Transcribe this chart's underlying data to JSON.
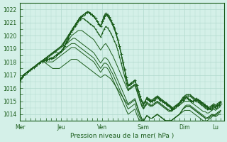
{
  "title": "",
  "xlabel": "Pression niveau de la mer( hPa )",
  "ylabel": "",
  "bg_color": "#d4f0e8",
  "grid_color": "#b0d8cc",
  "line_color": "#1a5c1a",
  "marker_color": "#1a5c1a",
  "ylim": [
    1013.5,
    1022.5
  ],
  "yticks": [
    1014,
    1015,
    1016,
    1017,
    1018,
    1019,
    1020,
    1021,
    1022
  ],
  "day_labels": [
    "Mer",
    "Jeu",
    "Ven",
    "Sam",
    "Dim",
    "Lu"
  ],
  "day_positions": [
    0,
    24,
    48,
    72,
    96,
    114
  ],
  "num_hours": 120,
  "series": [
    [
      1016.5,
      1016.8,
      1017.0,
      1017.1,
      1017.2,
      1017.3,
      1017.4,
      1017.5,
      1017.6,
      1017.7,
      1017.8,
      1017.9,
      1018.0,
      1018.0,
      1018.1,
      1018.1,
      1018.2,
      1018.2,
      1018.3,
      1018.3,
      1018.4,
      1018.5,
      1018.6,
      1018.7,
      1018.8,
      1019.0,
      1019.2,
      1019.5,
      1019.8,
      1020.1,
      1020.4,
      1020.6,
      1020.8,
      1021.0,
      1021.2,
      1021.4,
      1021.5,
      1021.6,
      1021.7,
      1021.8,
      1021.8,
      1021.7,
      1021.6,
      1021.5,
      1021.3,
      1021.1,
      1020.9,
      1020.7,
      1021.1,
      1021.5,
      1021.7,
      1021.6,
      1021.4,
      1021.2,
      1020.9,
      1020.6,
      1020.2,
      1019.7,
      1019.2,
      1018.6,
      1018.0,
      1017.4,
      1016.8,
      1016.2,
      1016.3,
      1016.4,
      1016.5,
      1016.6,
      1016.2,
      1015.8,
      1015.4,
      1015.0,
      1014.8,
      1015.0,
      1015.2,
      1015.1,
      1015.0,
      1015.0,
      1015.1,
      1015.2,
      1015.3,
      1015.2,
      1015.1,
      1015.0,
      1014.9,
      1014.8,
      1014.7,
      1014.6,
      1014.5,
      1014.4,
      1014.5,
      1014.6,
      1014.7,
      1014.8,
      1015.0,
      1015.1,
      1015.2,
      1015.3,
      1015.2,
      1015.1,
      1015.0,
      1015.0,
      1015.1,
      1015.2,
      1015.1,
      1015.0,
      1014.9,
      1014.8,
      1014.7,
      1014.6,
      1014.5,
      1014.4,
      1014.5,
      1014.6,
      1014.5,
      1014.6,
      1014.7,
      1014.8
    ],
    [
      1016.5,
      1016.8,
      1017.0,
      1017.1,
      1017.2,
      1017.3,
      1017.4,
      1017.5,
      1017.6,
      1017.7,
      1017.8,
      1017.9,
      1018.0,
      1018.0,
      1018.1,
      1018.1,
      1018.2,
      1018.2,
      1018.3,
      1018.3,
      1018.4,
      1018.5,
      1018.6,
      1018.7,
      1018.8,
      1019.0,
      1019.2,
      1019.4,
      1019.6,
      1019.8,
      1020.0,
      1020.1,
      1020.2,
      1020.3,
      1020.4,
      1020.4,
      1020.4,
      1020.3,
      1020.2,
      1020.1,
      1020.0,
      1019.9,
      1019.8,
      1019.7,
      1019.5,
      1019.3,
      1019.1,
      1018.9,
      1019.1,
      1019.3,
      1019.4,
      1019.2,
      1019.0,
      1018.7,
      1018.5,
      1018.2,
      1017.9,
      1017.6,
      1017.3,
      1017.0,
      1016.7,
      1016.4,
      1016.1,
      1015.8,
      1015.9,
      1016.0,
      1016.1,
      1016.2,
      1015.8,
      1015.4,
      1015.0,
      1014.6,
      1014.4,
      1014.6,
      1014.8,
      1014.7,
      1014.6,
      1014.6,
      1014.7,
      1014.8,
      1014.9,
      1014.8,
      1014.7,
      1014.6,
      1014.5,
      1014.4,
      1014.3,
      1014.2,
      1014.2,
      1014.3,
      1014.4,
      1014.5,
      1014.6,
      1014.7,
      1014.8,
      1014.9,
      1015.0,
      1015.0,
      1015.0,
      1015.0,
      1014.9,
      1014.8,
      1014.7,
      1014.6,
      1014.5,
      1014.4,
      1014.3,
      1014.2,
      1014.2,
      1014.1,
      1014.1,
      1014.2,
      1014.3,
      1014.4,
      1014.3,
      1014.4,
      1014.5,
      1014.6
    ],
    [
      1016.5,
      1016.8,
      1017.0,
      1017.1,
      1017.2,
      1017.3,
      1017.4,
      1017.5,
      1017.6,
      1017.7,
      1017.8,
      1017.9,
      1018.0,
      1018.0,
      1018.0,
      1017.9,
      1017.8,
      1017.7,
      1017.6,
      1017.5,
      1017.5,
      1017.5,
      1017.5,
      1017.5,
      1017.6,
      1017.7,
      1017.8,
      1017.9,
      1018.0,
      1018.1,
      1018.2,
      1018.2,
      1018.2,
      1018.2,
      1018.1,
      1018.0,
      1017.9,
      1017.8,
      1017.7,
      1017.6,
      1017.5,
      1017.4,
      1017.3,
      1017.2,
      1017.1,
      1017.0,
      1016.9,
      1016.8,
      1016.9,
      1017.0,
      1017.0,
      1016.9,
      1016.8,
      1016.7,
      1016.5,
      1016.3,
      1016.1,
      1015.9,
      1015.7,
      1015.5,
      1015.3,
      1015.1,
      1014.9,
      1014.7,
      1014.8,
      1014.9,
      1015.0,
      1015.1,
      1014.7,
      1014.3,
      1013.9,
      1013.6,
      1013.5,
      1013.7,
      1013.9,
      1013.8,
      1013.7,
      1013.7,
      1013.8,
      1013.9,
      1014.0,
      1013.9,
      1013.8,
      1013.7,
      1013.6,
      1013.5,
      1013.5,
      1013.5,
      1013.5,
      1013.6,
      1013.7,
      1013.8,
      1013.9,
      1014.0,
      1014.1,
      1014.2,
      1014.3,
      1014.3,
      1014.3,
      1014.3,
      1014.2,
      1014.1,
      1014.0,
      1013.9,
      1013.8,
      1013.7,
      1013.6,
      1013.5,
      1013.5,
      1013.5,
      1013.6,
      1013.7,
      1013.8,
      1013.9,
      1013.8,
      1013.9,
      1014.0,
      1014.0
    ],
    [
      1016.5,
      1016.8,
      1017.0,
      1017.1,
      1017.2,
      1017.3,
      1017.4,
      1017.5,
      1017.6,
      1017.7,
      1017.8,
      1017.9,
      1018.0,
      1018.0,
      1018.1,
      1018.2,
      1018.3,
      1018.4,
      1018.5,
      1018.6,
      1018.7,
      1018.8,
      1018.9,
      1019.0,
      1019.1,
      1019.2,
      1019.3,
      1019.4,
      1019.5,
      1019.6,
      1019.7,
      1019.8,
      1019.8,
      1019.7,
      1019.6,
      1019.5,
      1019.4,
      1019.3,
      1019.2,
      1019.1,
      1019.0,
      1018.9,
      1018.8,
      1018.7,
      1018.5,
      1018.3,
      1018.1,
      1017.9,
      1018.1,
      1018.3,
      1018.3,
      1018.2,
      1018.0,
      1017.7,
      1017.5,
      1017.2,
      1016.9,
      1016.6,
      1016.3,
      1016.0,
      1015.7,
      1015.4,
      1015.1,
      1014.8,
      1014.9,
      1015.0,
      1015.1,
      1015.2,
      1014.8,
      1014.4,
      1014.0,
      1013.7,
      1013.5,
      1013.7,
      1013.9,
      1013.8,
      1013.7,
      1013.7,
      1013.8,
      1013.9,
      1014.0,
      1013.9,
      1013.8,
      1013.7,
      1013.6,
      1013.5,
      1013.5,
      1013.5,
      1013.5,
      1013.6,
      1013.7,
      1013.8,
      1013.9,
      1014.0,
      1014.2,
      1014.4,
      1014.6,
      1014.7,
      1014.7,
      1014.7,
      1014.6,
      1014.5,
      1014.4,
      1014.3,
      1014.2,
      1014.1,
      1014.0,
      1013.9,
      1013.8,
      1013.7,
      1013.7,
      1013.8,
      1013.9,
      1014.0,
      1013.9,
      1014.0,
      1014.1,
      1014.2
    ],
    [
      1016.5,
      1016.8,
      1017.0,
      1017.1,
      1017.2,
      1017.3,
      1017.4,
      1017.5,
      1017.6,
      1017.7,
      1017.8,
      1017.9,
      1018.0,
      1018.1,
      1018.2,
      1018.3,
      1018.4,
      1018.5,
      1018.6,
      1018.7,
      1018.7,
      1018.7,
      1018.7,
      1018.7,
      1018.8,
      1018.9,
      1019.0,
      1019.1,
      1019.2,
      1019.3,
      1019.4,
      1019.4,
      1019.4,
      1019.3,
      1019.2,
      1019.1,
      1019.0,
      1018.9,
      1018.8,
      1018.7,
      1018.6,
      1018.5,
      1018.4,
      1018.3,
      1018.1,
      1017.9,
      1017.7,
      1017.5,
      1017.7,
      1017.9,
      1017.9,
      1017.8,
      1017.6,
      1017.3,
      1017.1,
      1016.8,
      1016.5,
      1016.2,
      1015.9,
      1015.6,
      1015.3,
      1015.0,
      1014.7,
      1014.4,
      1014.5,
      1014.6,
      1014.7,
      1014.8,
      1014.4,
      1014.0,
      1013.7,
      1013.5,
      1013.5,
      1013.7,
      1013.9,
      1013.8,
      1013.7,
      1013.7,
      1013.8,
      1013.9,
      1014.0,
      1013.9,
      1013.8,
      1013.7,
      1013.6,
      1013.5,
      1013.5,
      1013.5,
      1013.5,
      1013.6,
      1013.7,
      1013.8,
      1013.9,
      1014.0,
      1014.2,
      1014.4,
      1014.5,
      1014.6,
      1014.6,
      1014.6,
      1014.5,
      1014.4,
      1014.3,
      1014.2,
      1014.1,
      1014.0,
      1013.9,
      1013.8,
      1013.7,
      1013.7,
      1013.8,
      1013.9,
      1014.0,
      1013.9,
      1014.0,
      1014.1,
      1014.2,
      1014.3
    ],
    [
      1016.5,
      1016.8,
      1017.0,
      1017.1,
      1017.2,
      1017.3,
      1017.4,
      1017.5,
      1017.6,
      1017.7,
      1017.8,
      1017.9,
      1018.0,
      1018.0,
      1018.0,
      1018.0,
      1018.0,
      1018.0,
      1018.0,
      1018.0,
      1018.1,
      1018.2,
      1018.3,
      1018.4,
      1018.5,
      1018.6,
      1018.7,
      1018.8,
      1018.9,
      1019.0,
      1019.1,
      1019.1,
      1019.1,
      1019.0,
      1018.9,
      1018.8,
      1018.7,
      1018.6,
      1018.5,
      1018.4,
      1018.3,
      1018.2,
      1018.1,
      1018.0,
      1017.8,
      1017.6,
      1017.4,
      1017.2,
      1017.4,
      1017.6,
      1017.6,
      1017.5,
      1017.3,
      1017.0,
      1016.7,
      1016.4,
      1016.1,
      1015.8,
      1015.5,
      1015.2,
      1014.9,
      1014.6,
      1014.3,
      1014.0,
      1014.1,
      1014.2,
      1014.3,
      1014.4,
      1014.0,
      1013.7,
      1013.5,
      1013.5,
      1013.5,
      1013.7,
      1013.9,
      1013.8,
      1013.7,
      1013.7,
      1013.8,
      1013.9,
      1014.0,
      1013.9,
      1013.8,
      1013.7,
      1013.6,
      1013.5,
      1013.5,
      1013.5,
      1013.5,
      1013.6,
      1013.7,
      1013.8,
      1013.9,
      1014.0,
      1014.2,
      1014.4,
      1014.5,
      1014.6,
      1014.6,
      1014.6,
      1014.5,
      1014.4,
      1014.3,
      1014.2,
      1014.1,
      1014.0,
      1013.9,
      1013.8,
      1013.7,
      1013.7,
      1013.8,
      1013.9,
      1014.0,
      1013.9,
      1014.0,
      1014.1,
      1014.2,
      1014.3
    ],
    [
      1016.5,
      1016.8,
      1017.0,
      1017.1,
      1017.2,
      1017.3,
      1017.4,
      1017.5,
      1017.6,
      1017.7,
      1017.8,
      1017.9,
      1018.0,
      1018.1,
      1018.2,
      1018.3,
      1018.4,
      1018.5,
      1018.6,
      1018.7,
      1018.8,
      1018.9,
      1019.0,
      1019.1,
      1019.2,
      1019.3,
      1019.5,
      1019.7,
      1019.9,
      1020.1,
      1020.3,
      1020.5,
      1020.7,
      1020.9,
      1021.1,
      1021.3,
      1021.5,
      1021.6,
      1021.7,
      1021.8,
      1021.8,
      1021.7,
      1021.6,
      1021.5,
      1021.3,
      1021.1,
      1020.9,
      1020.7,
      1021.0,
      1021.3,
      1021.6,
      1021.5,
      1021.3,
      1021.1,
      1020.8,
      1020.5,
      1020.1,
      1019.7,
      1019.2,
      1018.6,
      1018.0,
      1017.4,
      1016.8,
      1016.2,
      1016.3,
      1016.4,
      1016.5,
      1016.6,
      1016.2,
      1015.8,
      1015.4,
      1015.0,
      1014.7,
      1015.0,
      1015.3,
      1015.2,
      1015.1,
      1015.1,
      1015.2,
      1015.3,
      1015.4,
      1015.3,
      1015.2,
      1015.1,
      1015.0,
      1014.9,
      1014.8,
      1014.7,
      1014.6,
      1014.5,
      1014.6,
      1014.7,
      1014.8,
      1014.9,
      1015.1,
      1015.3,
      1015.4,
      1015.5,
      1015.5,
      1015.5,
      1015.4,
      1015.3,
      1015.2,
      1015.1,
      1015.0,
      1014.9,
      1014.8,
      1014.7,
      1014.6,
      1014.5,
      1014.5,
      1014.6,
      1014.7,
      1014.8,
      1014.7,
      1014.8,
      1014.9,
      1015.0
    ],
    [
      1016.5,
      1016.8,
      1017.0,
      1017.1,
      1017.2,
      1017.3,
      1017.4,
      1017.5,
      1017.6,
      1017.7,
      1017.8,
      1017.9,
      1018.0,
      1018.1,
      1018.2,
      1018.3,
      1018.4,
      1018.5,
      1018.6,
      1018.7,
      1018.8,
      1018.9,
      1019.0,
      1019.1,
      1019.2,
      1019.4,
      1019.6,
      1019.8,
      1020.0,
      1020.2,
      1020.4,
      1020.6,
      1020.8,
      1021.0,
      1021.1,
      1021.2,
      1021.3,
      1021.3,
      1021.2,
      1021.1,
      1021.0,
      1020.9,
      1020.8,
      1020.7,
      1020.5,
      1020.3,
      1020.1,
      1019.9,
      1020.2,
      1020.5,
      1020.7,
      1020.6,
      1020.4,
      1020.2,
      1019.9,
      1019.6,
      1019.3,
      1018.9,
      1018.4,
      1017.9,
      1017.4,
      1016.9,
      1016.4,
      1015.9,
      1016.0,
      1016.1,
      1016.2,
      1016.3,
      1015.9,
      1015.5,
      1015.1,
      1014.7,
      1014.5,
      1014.7,
      1014.9,
      1014.8,
      1014.7,
      1014.7,
      1014.8,
      1014.9,
      1015.0,
      1014.9,
      1014.8,
      1014.7,
      1014.6,
      1014.5,
      1014.4,
      1014.3,
      1014.3,
      1014.4,
      1014.5,
      1014.6,
      1014.7,
      1014.8,
      1015.0,
      1015.2,
      1015.3,
      1015.4,
      1015.4,
      1015.4,
      1015.3,
      1015.2,
      1015.1,
      1015.0,
      1014.9,
      1014.8,
      1014.7,
      1014.6,
      1014.5,
      1014.4,
      1014.4,
      1014.5,
      1014.6,
      1014.7,
      1014.6,
      1014.7,
      1014.8,
      1014.9
    ]
  ]
}
